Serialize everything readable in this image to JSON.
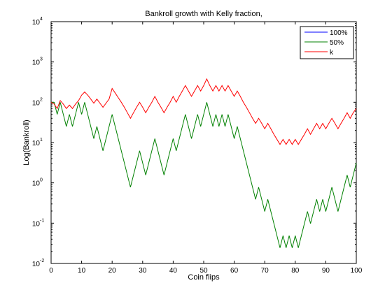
{
  "chart_data": {
    "type": "line",
    "title": "Bankroll growth with Kelly fraction,",
    "xlabel": "Coin flips",
    "ylabel": "Log(Bankroll)",
    "xlim": [
      0,
      100
    ],
    "ylim": [
      0.01,
      10000
    ],
    "yscale": "log",
    "grid": false,
    "legend_position": "top-right",
    "x_ticks": [
      0,
      10,
      20,
      30,
      40,
      50,
      60,
      70,
      80,
      90,
      100
    ],
    "x_tick_labels": [
      "0",
      "10",
      "20",
      "30",
      "40",
      "50",
      "60",
      "70",
      "80",
      "90",
      "100"
    ],
    "y_ticks": [
      0.01,
      0.1,
      1,
      10,
      100,
      1000,
      10000
    ],
    "y_tick_labels": [
      {
        "base": "10",
        "exp": "-2"
      },
      {
        "base": "10",
        "exp": "-1"
      },
      {
        "base": "10",
        "exp": "0"
      },
      {
        "base": "10",
        "exp": "1"
      },
      {
        "base": "10",
        "exp": "2"
      },
      {
        "base": "10",
        "exp": "3"
      },
      {
        "base": "10",
        "exp": "4"
      }
    ],
    "series": [
      {
        "name": "100%",
        "color": "#0000ff",
        "x": [],
        "y": []
      },
      {
        "name": "50%",
        "color": "#008000",
        "x_start": 0,
        "x_step": 1,
        "y": [
          100,
          100,
          50,
          100,
          50,
          25,
          50,
          25,
          50,
          100,
          50,
          100,
          50,
          25,
          12.5,
          25,
          12.5,
          6.25,
          12.5,
          25,
          50,
          25,
          12.5,
          6.25,
          3.125,
          1.5625,
          0.78125,
          1.5625,
          3.125,
          6.25,
          3.125,
          1.5625,
          3.125,
          6.25,
          12.5,
          6.25,
          3.125,
          1.5625,
          3.125,
          6.25,
          12.5,
          6.25,
          12.5,
          25,
          50,
          25,
          12.5,
          25,
          50,
          25,
          50,
          100,
          50,
          25,
          50,
          25,
          50,
          25,
          50,
          25,
          12.5,
          25,
          12.5,
          6.25,
          3.125,
          1.5625,
          0.78125,
          0.390625,
          0.78125,
          0.390625,
          0.1953125,
          0.390625,
          0.1953125,
          0.09765625,
          0.048828125,
          0.0244140625,
          0.048828125,
          0.0244140625,
          0.048828125,
          0.0244140625,
          0.048828125,
          0.0244140625,
          0.048828125,
          0.09765625,
          0.1953125,
          0.09765625,
          0.1953125,
          0.390625,
          0.1953125,
          0.390625,
          0.1953125,
          0.390625,
          0.78125,
          0.390625,
          0.1953125,
          0.390625,
          0.78125,
          1.5625,
          0.78125,
          1.5625,
          3.125
        ]
      },
      {
        "name": "k",
        "color": "#ff0000",
        "x_start": 0,
        "x_step": 1,
        "y": [
          100,
          90,
          70,
          110,
          90,
          70,
          85,
          70,
          90,
          110,
          150,
          180,
          150,
          120,
          95,
          120,
          95,
          75,
          95,
          120,
          220,
          170,
          130,
          100,
          75,
          55,
          40,
          55,
          75,
          100,
          75,
          55,
          75,
          100,
          140,
          100,
          75,
          55,
          75,
          100,
          140,
          100,
          140,
          190,
          260,
          190,
          140,
          190,
          260,
          190,
          260,
          380,
          260,
          190,
          260,
          190,
          260,
          190,
          260,
          190,
          140,
          190,
          140,
          100,
          75,
          55,
          40,
          30,
          40,
          30,
          22,
          30,
          22,
          16,
          12,
          9,
          12,
          9,
          12,
          9,
          12,
          9,
          12,
          16,
          22,
          16,
          22,
          30,
          22,
          30,
          22,
          30,
          40,
          30,
          22,
          30,
          40,
          55,
          40,
          55,
          70
        ]
      }
    ]
  }
}
